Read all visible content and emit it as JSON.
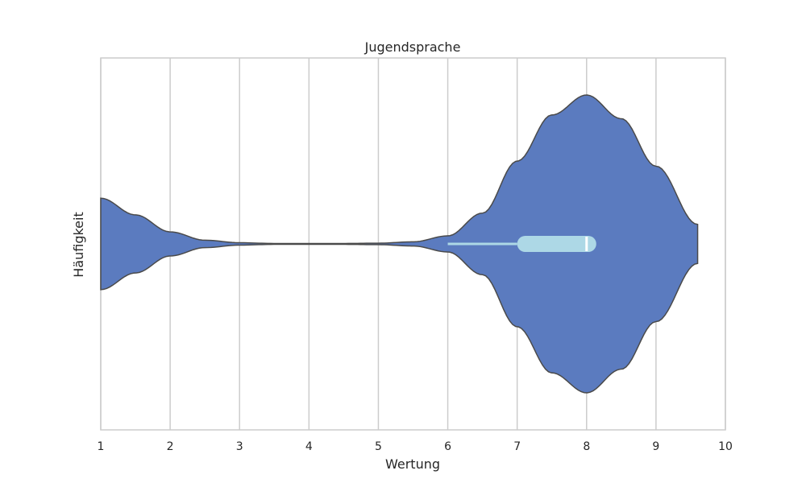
{
  "chart_data": {
    "type": "violin",
    "title": "Jugendsprache",
    "xlabel": "Wertung",
    "ylabel": "Häufigkeit",
    "xlim": [
      1,
      10
    ],
    "xticks": [
      1,
      2,
      3,
      4,
      5,
      6,
      7,
      8,
      9,
      10
    ],
    "grid": "vertical",
    "orientation": "horizontal",
    "density_extent": [
      1,
      9.6
    ],
    "density_profile": {
      "x": [
        1.0,
        1.5,
        2.0,
        2.5,
        3.0,
        3.5,
        4.0,
        4.5,
        5.0,
        5.5,
        6.0,
        6.5,
        7.0,
        7.5,
        8.0,
        8.5,
        9.0,
        9.6
      ],
      "relative_width": [
        0.307,
        0.195,
        0.081,
        0.025,
        0.008,
        0.003,
        0.003,
        0.003,
        0.005,
        0.014,
        0.054,
        0.207,
        0.556,
        0.866,
        1.0,
        0.841,
        0.522,
        0.131
      ]
    },
    "box": {
      "whisker_low": 6,
      "q1": 7,
      "median": 8,
      "q3": 8,
      "whisker_high": 8
    },
    "colors": {
      "violin_fill": "#5b7bbf",
      "violin_edge": "#4a4a4a",
      "box": "#add8e6",
      "median": "#ffffff",
      "grid": "#cccccc",
      "frame": "#cccccc"
    }
  }
}
